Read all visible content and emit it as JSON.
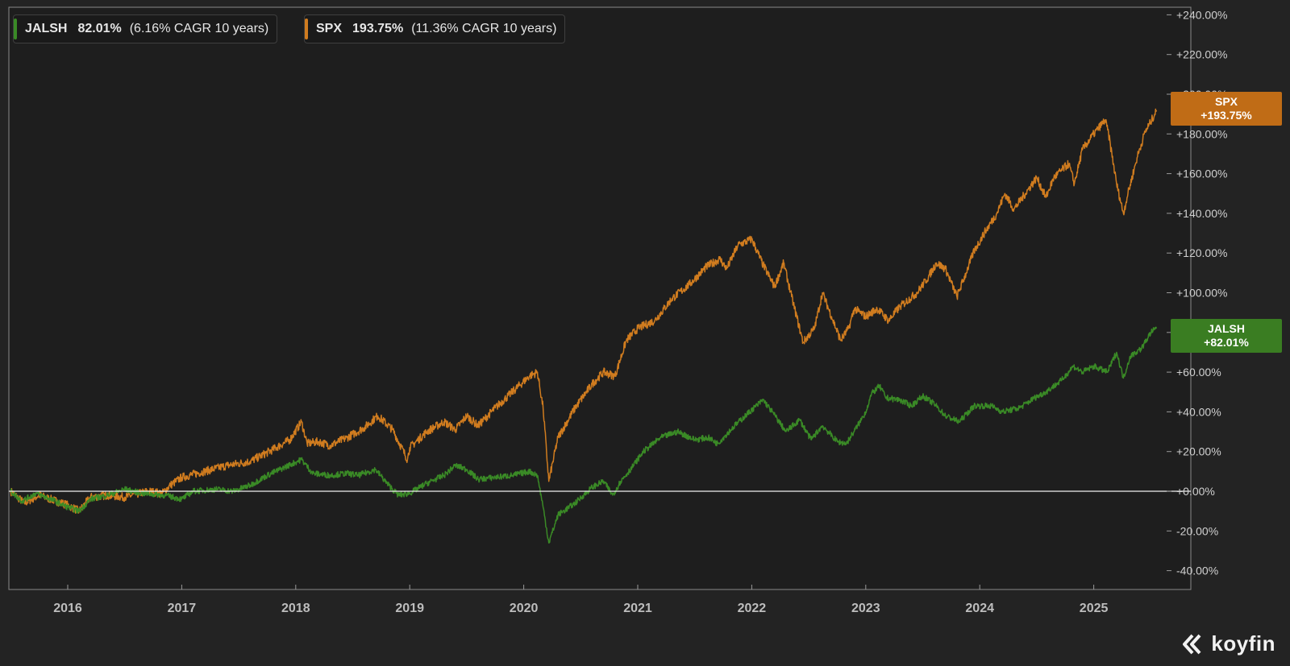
{
  "legend": [
    {
      "name": "JALSH",
      "return": "82.01%",
      "cagr": "(6.16% CAGR 10 years)",
      "color": "#3a8a26"
    },
    {
      "name": "SPX",
      "return": "193.75%",
      "cagr": "(11.36% CAGR 10 years)",
      "color": "#d07c1f"
    }
  ],
  "tags": {
    "spx": {
      "name": "SPX",
      "value": "+193.75%",
      "color": "#c06c16"
    },
    "jalsh": {
      "name": "JALSH",
      "value": "+82.01%",
      "color": "#3a7d22"
    }
  },
  "brand": {
    "name": "koyfin",
    "icon": "koyfin-logo-icon"
  },
  "chart_data": {
    "type": "line",
    "xlim": [
      2015.5,
      2025.75
    ],
    "ylim": [
      -40,
      244
    ],
    "y_ticks": [
      {
        "value": 240,
        "label": "+240.00%"
      },
      {
        "value": 220,
        "label": "+220.00%"
      },
      {
        "value": 200,
        "label": "+200.00%"
      },
      {
        "value": 180,
        "label": "+180.00%"
      },
      {
        "value": 160,
        "label": "+160.00%"
      },
      {
        "value": 140,
        "label": "+140.00%"
      },
      {
        "value": 120,
        "label": "+120.00%"
      },
      {
        "value": 100,
        "label": "+100.00%"
      },
      {
        "value": 80,
        "label": "+80.00%"
      },
      {
        "value": 60,
        "label": "+60.00%"
      },
      {
        "value": 40,
        "label": "+40.00%"
      },
      {
        "value": 20,
        "label": "+20.00%"
      },
      {
        "value": 0,
        "label": "+0.00%"
      },
      {
        "value": -20,
        "label": "-20.00%"
      },
      {
        "value": -40,
        "label": "-40.00%"
      }
    ],
    "x_ticks": [
      {
        "value": 2016,
        "label": "2016"
      },
      {
        "value": 2017,
        "label": "2017"
      },
      {
        "value": 2018,
        "label": "2018"
      },
      {
        "value": 2019,
        "label": "2019"
      },
      {
        "value": 2020,
        "label": "2020"
      },
      {
        "value": 2021,
        "label": "2021"
      },
      {
        "value": 2022,
        "label": "2022"
      },
      {
        "value": 2023,
        "label": "2023"
      },
      {
        "value": 2024,
        "label": "2024"
      },
      {
        "value": 2025,
        "label": "2025"
      }
    ],
    "zero_line": 0,
    "grid": false,
    "legend_position": "top-left",
    "series": [
      {
        "name": "SPX",
        "color": "#d07c1f",
        "points": [
          [
            2015.5,
            0
          ],
          [
            2015.62,
            -6
          ],
          [
            2015.75,
            -2
          ],
          [
            2015.85,
            -4
          ],
          [
            2016.0,
            -7
          ],
          [
            2016.1,
            -10
          ],
          [
            2016.2,
            -3
          ],
          [
            2016.35,
            -2
          ],
          [
            2016.5,
            -3
          ],
          [
            2016.7,
            0
          ],
          [
            2016.83,
            -1
          ],
          [
            2016.9,
            3
          ],
          [
            2017.0,
            7
          ],
          [
            2017.2,
            10
          ],
          [
            2017.4,
            13
          ],
          [
            2017.6,
            15
          ],
          [
            2017.8,
            21
          ],
          [
            2017.95,
            26
          ],
          [
            2018.05,
            35
          ],
          [
            2018.1,
            24
          ],
          [
            2018.2,
            25
          ],
          [
            2018.3,
            23
          ],
          [
            2018.45,
            27
          ],
          [
            2018.6,
            32
          ],
          [
            2018.72,
            38
          ],
          [
            2018.85,
            31
          ],
          [
            2018.98,
            16
          ],
          [
            2019.0,
            22
          ],
          [
            2019.15,
            30
          ],
          [
            2019.3,
            35
          ],
          [
            2019.4,
            31
          ],
          [
            2019.5,
            38
          ],
          [
            2019.6,
            33
          ],
          [
            2019.75,
            42
          ],
          [
            2019.9,
            50
          ],
          [
            2020.05,
            58
          ],
          [
            2020.12,
            60
          ],
          [
            2020.17,
            42
          ],
          [
            2020.22,
            5
          ],
          [
            2020.3,
            27
          ],
          [
            2020.45,
            42
          ],
          [
            2020.6,
            54
          ],
          [
            2020.7,
            60
          ],
          [
            2020.8,
            58
          ],
          [
            2020.9,
            76
          ],
          [
            2021.0,
            82
          ],
          [
            2021.15,
            86
          ],
          [
            2021.3,
            97
          ],
          [
            2021.45,
            104
          ],
          [
            2021.6,
            113
          ],
          [
            2021.72,
            117
          ],
          [
            2021.78,
            112
          ],
          [
            2021.88,
            124
          ],
          [
            2022.0,
            127
          ],
          [
            2022.1,
            114
          ],
          [
            2022.2,
            103
          ],
          [
            2022.28,
            115
          ],
          [
            2022.35,
            98
          ],
          [
            2022.45,
            75
          ],
          [
            2022.55,
            82
          ],
          [
            2022.62,
            100
          ],
          [
            2022.7,
            88
          ],
          [
            2022.78,
            76
          ],
          [
            2022.85,
            82
          ],
          [
            2022.9,
            92
          ],
          [
            2023.0,
            88
          ],
          [
            2023.1,
            92
          ],
          [
            2023.2,
            86
          ],
          [
            2023.3,
            93
          ],
          [
            2023.45,
            100
          ],
          [
            2023.55,
            108
          ],
          [
            2023.62,
            115
          ],
          [
            2023.7,
            112
          ],
          [
            2023.8,
            98
          ],
          [
            2023.88,
            110
          ],
          [
            2023.95,
            121
          ],
          [
            2024.05,
            131
          ],
          [
            2024.15,
            140
          ],
          [
            2024.22,
            150
          ],
          [
            2024.3,
            142
          ],
          [
            2024.4,
            150
          ],
          [
            2024.5,
            158
          ],
          [
            2024.58,
            148
          ],
          [
            2024.65,
            158
          ],
          [
            2024.78,
            165
          ],
          [
            2024.83,
            155
          ],
          [
            2024.9,
            172
          ],
          [
            2025.0,
            180
          ],
          [
            2025.1,
            187
          ],
          [
            2025.13,
            180
          ],
          [
            2025.2,
            155
          ],
          [
            2025.26,
            140
          ],
          [
            2025.3,
            150
          ],
          [
            2025.38,
            168
          ],
          [
            2025.45,
            181
          ],
          [
            2025.5,
            186
          ],
          [
            2025.55,
            192
          ]
        ]
      },
      {
        "name": "JALSH",
        "color": "#3a8a26",
        "points": [
          [
            2015.5,
            0
          ],
          [
            2015.6,
            -5
          ],
          [
            2015.72,
            -1
          ],
          [
            2015.85,
            -4
          ],
          [
            2016.0,
            -8
          ],
          [
            2016.1,
            -10
          ],
          [
            2016.2,
            -4
          ],
          [
            2016.35,
            -2
          ],
          [
            2016.5,
            1
          ],
          [
            2016.65,
            -1
          ],
          [
            2016.85,
            -2
          ],
          [
            2017.0,
            -4
          ],
          [
            2017.1,
            0
          ],
          [
            2017.3,
            1
          ],
          [
            2017.45,
            0
          ],
          [
            2017.6,
            3
          ],
          [
            2017.75,
            8
          ],
          [
            2017.9,
            12
          ],
          [
            2018.05,
            16
          ],
          [
            2018.15,
            9
          ],
          [
            2018.3,
            8
          ],
          [
            2018.45,
            9
          ],
          [
            2018.55,
            8
          ],
          [
            2018.7,
            11
          ],
          [
            2018.8,
            4
          ],
          [
            2018.9,
            -2
          ],
          [
            2019.0,
            -1
          ],
          [
            2019.15,
            4
          ],
          [
            2019.3,
            8
          ],
          [
            2019.4,
            13
          ],
          [
            2019.5,
            11
          ],
          [
            2019.6,
            6
          ],
          [
            2019.75,
            7
          ],
          [
            2019.9,
            8
          ],
          [
            2020.05,
            10
          ],
          [
            2020.12,
            8
          ],
          [
            2020.17,
            -8
          ],
          [
            2020.22,
            -26
          ],
          [
            2020.3,
            -12
          ],
          [
            2020.45,
            -6
          ],
          [
            2020.6,
            2
          ],
          [
            2020.7,
            5
          ],
          [
            2020.78,
            -2
          ],
          [
            2020.85,
            5
          ],
          [
            2020.95,
            12
          ],
          [
            2021.05,
            20
          ],
          [
            2021.2,
            27
          ],
          [
            2021.35,
            30
          ],
          [
            2021.5,
            26
          ],
          [
            2021.62,
            27
          ],
          [
            2021.7,
            24
          ],
          [
            2021.85,
            33
          ],
          [
            2022.0,
            41
          ],
          [
            2022.1,
            46
          ],
          [
            2022.18,
            40
          ],
          [
            2022.3,
            30
          ],
          [
            2022.42,
            36
          ],
          [
            2022.52,
            26
          ],
          [
            2022.62,
            33
          ],
          [
            2022.75,
            25
          ],
          [
            2022.83,
            24
          ],
          [
            2022.95,
            35
          ],
          [
            2023.0,
            40
          ],
          [
            2023.05,
            49
          ],
          [
            2023.12,
            53
          ],
          [
            2023.18,
            47
          ],
          [
            2023.3,
            46
          ],
          [
            2023.4,
            43
          ],
          [
            2023.5,
            48
          ],
          [
            2023.6,
            44
          ],
          [
            2023.7,
            38
          ],
          [
            2023.82,
            35
          ],
          [
            2023.95,
            43
          ],
          [
            2024.1,
            43
          ],
          [
            2024.2,
            40
          ],
          [
            2024.35,
            42
          ],
          [
            2024.48,
            47
          ],
          [
            2024.58,
            50
          ],
          [
            2024.72,
            56
          ],
          [
            2024.82,
            63
          ],
          [
            2024.9,
            60
          ],
          [
            2025.0,
            63
          ],
          [
            2025.12,
            60
          ],
          [
            2025.2,
            70
          ],
          [
            2025.26,
            57
          ],
          [
            2025.32,
            68
          ],
          [
            2025.42,
            72
          ],
          [
            2025.5,
            80
          ],
          [
            2025.55,
            82
          ]
        ]
      }
    ]
  }
}
